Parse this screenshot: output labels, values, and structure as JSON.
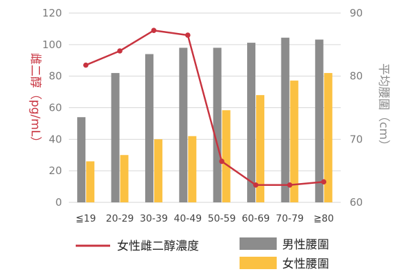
{
  "chart_data": {
    "type": "bar",
    "categories": [
      "≦19",
      "20-29",
      "30-39",
      "40-49",
      "50-59",
      "60-69",
      "70-79",
      "≧80"
    ],
    "left_axis": {
      "label": "雌二醇（pg/mL）",
      "ylim": [
        0,
        120
      ],
      "ticks": [
        0,
        20,
        40,
        60,
        80,
        100,
        120
      ],
      "color": "#c8333f"
    },
    "right_axis": {
      "label": "平均腰圍（cm）",
      "ylim": [
        60,
        90
      ],
      "ticks": [
        60,
        70,
        80,
        90
      ],
      "color": "#8a8a8a"
    },
    "series": [
      {
        "name": "女性雌二醇濃度",
        "type": "line",
        "axis": "left",
        "color": "#c8333f",
        "values": [
          87,
          96,
          109,
          106,
          26,
          11,
          11,
          13
        ]
      },
      {
        "name": "男性腰圍",
        "type": "bar",
        "axis": "right",
        "color": "#8c8c8c",
        "values": [
          73.5,
          80.5,
          83.5,
          84.5,
          84.5,
          85.3,
          86.1,
          85.8
        ]
      },
      {
        "name": "女性腰圍",
        "type": "bar",
        "axis": "right",
        "color": "#fbc142",
        "values": [
          66.5,
          67.5,
          70,
          70.5,
          74.6,
          77,
          79.3,
          80.5
        ]
      }
    ],
    "grid": true,
    "legend_position": "bottom"
  }
}
